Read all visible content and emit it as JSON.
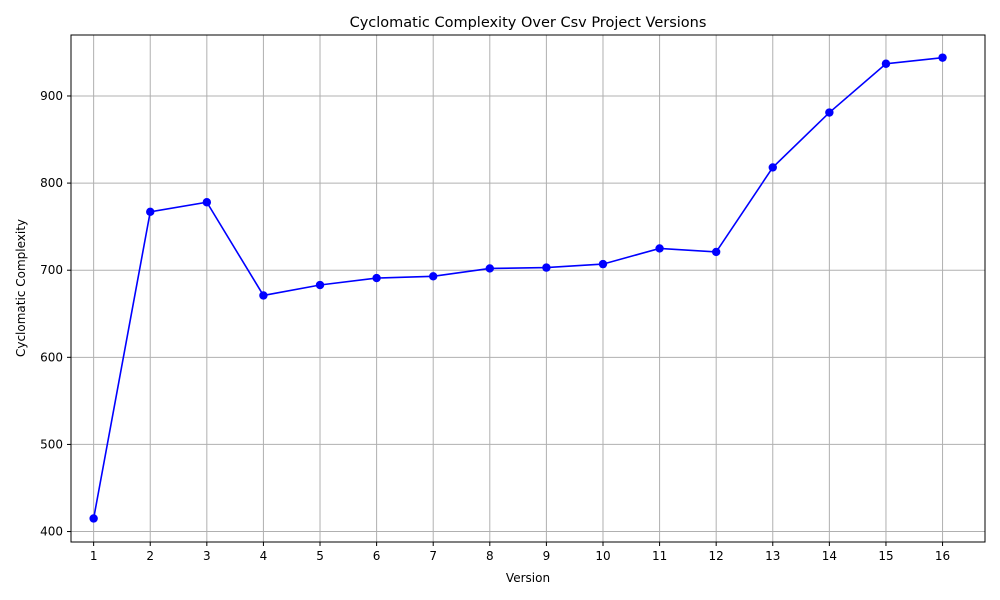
{
  "chart_data": {
    "type": "line",
    "title": "Cyclomatic Complexity Over Csv Project Versions",
    "xlabel": "Version",
    "ylabel": "Cyclomatic Complexity",
    "x": [
      1,
      2,
      3,
      4,
      5,
      6,
      7,
      8,
      9,
      10,
      11,
      12,
      13,
      14,
      15,
      16
    ],
    "series": [
      {
        "values": [
          415,
          767,
          778,
          671,
          683,
          691,
          693,
          702,
          703,
          707,
          725,
          721,
          818,
          881,
          937,
          944
        ],
        "color": "#0000ff",
        "marker": "circle"
      }
    ],
    "xlim": [
      0.6,
      16.75
    ],
    "ylim": [
      388,
      970
    ],
    "yticks": [
      400,
      500,
      600,
      700,
      800,
      900
    ],
    "grid": true
  }
}
